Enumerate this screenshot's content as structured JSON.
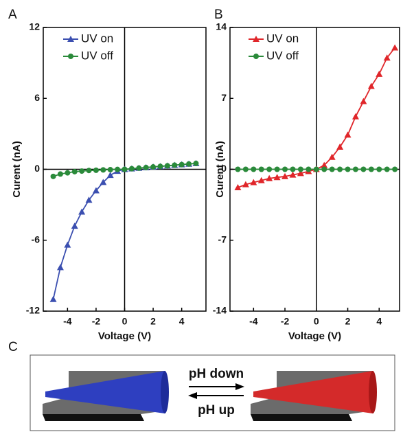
{
  "chart_data": [
    {
      "type": "line",
      "panel_label": "A",
      "x_label": "Voltage (V)",
      "y_label": "Curent (nA)",
      "x": [
        -5,
        -4.5,
        -4,
        -3.5,
        -3,
        -2.5,
        -2,
        -1.5,
        -1,
        -0.5,
        0,
        0.5,
        1,
        1.5,
        2,
        2.5,
        3,
        3.5,
        4,
        4.5,
        5
      ],
      "xlim": [
        -5.7,
        5.7
      ],
      "xticks": [
        -4,
        -2,
        0,
        2,
        4
      ],
      "ylim": [
        -12,
        12
      ],
      "yticks": [
        -12,
        -6,
        0,
        6,
        12
      ],
      "legend": "upper left",
      "series": [
        {
          "name": "UV on",
          "color": "#3b4fb0",
          "marker": "triangle",
          "values": [
            -11,
            -8.3,
            -6.4,
            -4.8,
            -3.6,
            -2.6,
            -1.8,
            -1.1,
            -0.5,
            -0.15,
            0,
            0.05,
            0.1,
            0.15,
            0.2,
            0.25,
            0.3,
            0.35,
            0.4,
            0.45,
            0.5
          ]
        },
        {
          "name": "UV off",
          "color": "#2a8a3a",
          "marker": "circle",
          "values": [
            -0.6,
            -0.4,
            -0.3,
            -0.2,
            -0.15,
            -0.1,
            -0.08,
            -0.05,
            -0.03,
            -0.01,
            0,
            0.05,
            0.1,
            0.15,
            0.2,
            0.25,
            0.3,
            0.35,
            0.4,
            0.45,
            0.5
          ]
        }
      ]
    },
    {
      "type": "line",
      "panel_label": "B",
      "x_label": "Voltage (V)",
      "y_label": "Curent (nA)",
      "x": [
        -5,
        -4.5,
        -4,
        -3.5,
        -3,
        -2.5,
        -2,
        -1.5,
        -1,
        -0.5,
        0,
        0.5,
        1,
        1.5,
        2,
        2.5,
        3,
        3.5,
        4,
        4.5,
        5
      ],
      "xlim": [
        -5.5,
        5.3
      ],
      "xticks": [
        -4,
        -2,
        0,
        2,
        4
      ],
      "ylim": [
        -14,
        14
      ],
      "yticks": [
        -14,
        -7,
        0,
        7,
        14
      ],
      "legend": "upper left",
      "series": [
        {
          "name": "UV on",
          "color": "#e0262a",
          "marker": "triangle",
          "values": [
            -1.8,
            -1.5,
            -1.3,
            -1.1,
            -0.9,
            -0.8,
            -0.7,
            -0.55,
            -0.4,
            -0.2,
            0,
            0.4,
            1.2,
            2.2,
            3.4,
            5.2,
            6.7,
            8.2,
            9.4,
            11.0,
            12.0
          ]
        },
        {
          "name": "UV off",
          "color": "#2a8a3a",
          "marker": "circle",
          "values": [
            0,
            0,
            0,
            0,
            0,
            0,
            0,
            0,
            0,
            0,
            0,
            0,
            0,
            0,
            0,
            0,
            0,
            0,
            0,
            0,
            0
          ]
        }
      ]
    }
  ],
  "panel_c": {
    "panel_label": "C",
    "arrow_top": "pH  down",
    "arrow_bottom": "pH  up"
  }
}
